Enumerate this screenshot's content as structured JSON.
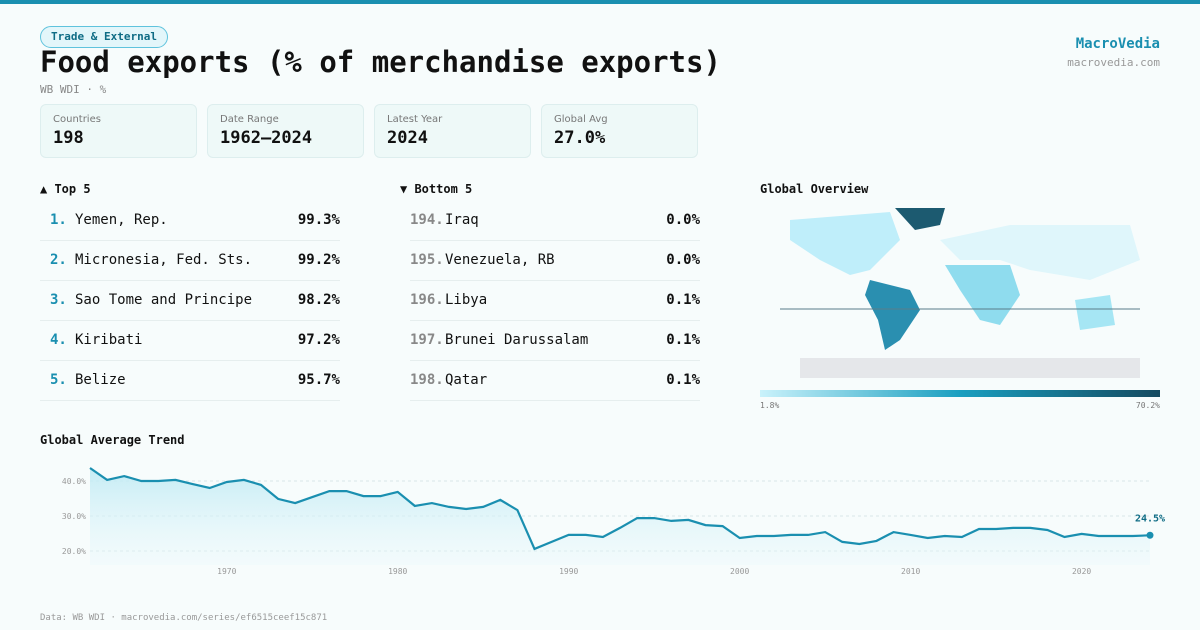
{
  "header": {
    "badge": "Trade & External",
    "title": "Food exports (% of merchandise exports)",
    "subtitle": "WB WDI · %",
    "brand": "MacroVedia",
    "site": "macrovedia.com"
  },
  "stats": [
    {
      "label": "Countries",
      "value": "198"
    },
    {
      "label": "Date Range",
      "value": "1962–2024"
    },
    {
      "label": "Latest Year",
      "value": "2024"
    },
    {
      "label": "Global Avg",
      "value": "27.0%"
    }
  ],
  "top": {
    "title": "▲ Top 5",
    "rows": [
      [
        "1.",
        "Yemen, Rep.",
        "99.3%"
      ],
      [
        "2.",
        "Micronesia, Fed. Sts.",
        "99.2%"
      ],
      [
        "3.",
        "Sao Tome and Principe",
        "98.2%"
      ],
      [
        "4.",
        "Kiribati",
        "97.2%"
      ],
      [
        "5.",
        "Belize",
        "95.7%"
      ]
    ]
  },
  "bottom": {
    "title": "▼ Bottom 5",
    "rows": [
      [
        "194.",
        "Iraq",
        "0.0%"
      ],
      [
        "195.",
        "Venezuela, RB",
        "0.0%"
      ],
      [
        "196.",
        "Libya",
        "0.1%"
      ],
      [
        "197.",
        "Brunei Darussalam",
        "0.1%"
      ],
      [
        "198.",
        "Qatar",
        "0.1%"
      ]
    ]
  },
  "map": {
    "title": "Global Overview",
    "min_label": "1.8%",
    "max_label": "70.2%"
  },
  "chart_data": {
    "type": "line",
    "title": "Global Average Trend",
    "x": [
      1962,
      1963,
      1964,
      1965,
      1966,
      1967,
      1968,
      1969,
      1970,
      1971,
      1972,
      1973,
      1974,
      1975,
      1976,
      1977,
      1978,
      1979,
      1980,
      1981,
      1982,
      1983,
      1984,
      1985,
      1986,
      1987,
      1988,
      1989,
      1990,
      1991,
      1992,
      1993,
      1994,
      1995,
      1996,
      1997,
      1998,
      1999,
      2000,
      2001,
      2002,
      2003,
      2004,
      2005,
      2006,
      2007,
      2008,
      2009,
      2010,
      2011,
      2012,
      2013,
      2014,
      2015,
      2016,
      2017,
      2018,
      2019,
      2020,
      2021,
      2022,
      2023,
      2024
    ],
    "series": [
      {
        "name": "Global Average",
        "color": "#1a8fb0",
        "values": [
          43.7,
          40.3,
          41.4,
          40.0,
          40.0,
          40.3,
          39.1,
          38.0,
          39.7,
          40.3,
          38.9,
          34.9,
          33.7,
          35.4,
          37.1,
          37.1,
          35.7,
          35.7,
          36.9,
          32.9,
          33.7,
          32.6,
          32.0,
          32.6,
          34.6,
          31.7,
          20.6,
          22.6,
          24.6,
          24.6,
          24.0,
          26.6,
          29.4,
          29.4,
          28.6,
          28.9,
          27.4,
          27.1,
          23.7,
          24.3,
          24.3,
          24.6,
          24.6,
          25.4,
          22.6,
          22.0,
          22.9,
          25.4,
          24.6,
          23.7,
          24.3,
          24.0,
          26.3,
          26.3,
          26.6,
          26.6,
          26.0,
          24.0,
          24.9,
          24.3,
          24.3,
          24.3,
          24.5
        ],
        "value_labels": [
          null,
          null,
          null,
          null,
          null,
          null,
          null,
          null,
          null,
          null,
          null,
          null,
          null,
          null,
          null,
          null,
          null,
          null,
          null,
          null,
          null,
          null,
          null,
          null,
          null,
          null,
          null,
          null,
          null,
          null,
          null,
          null,
          null,
          null,
          null,
          null,
          null,
          null,
          null,
          null,
          null,
          null,
          null,
          null,
          null,
          null,
          null,
          null,
          null,
          null,
          null,
          null,
          null,
          null,
          null,
          null,
          null,
          null,
          null,
          null,
          null,
          null,
          "24.5%"
        ]
      }
    ],
    "xlim": [
      1962,
      2024
    ],
    "xticks": [
      1970,
      1980,
      1990,
      2000,
      2010,
      2020
    ],
    "ylim": [
      16,
      44
    ],
    "yticks": [
      {
        "value": 20,
        "label": "20.0%"
      },
      {
        "value": 30,
        "label": "30.0%"
      },
      {
        "value": 40,
        "label": "40.0%"
      }
    ],
    "grid": true
  },
  "footer": "Data: WB WDI · macrovedia.com/series/ef6515ceef15c871"
}
